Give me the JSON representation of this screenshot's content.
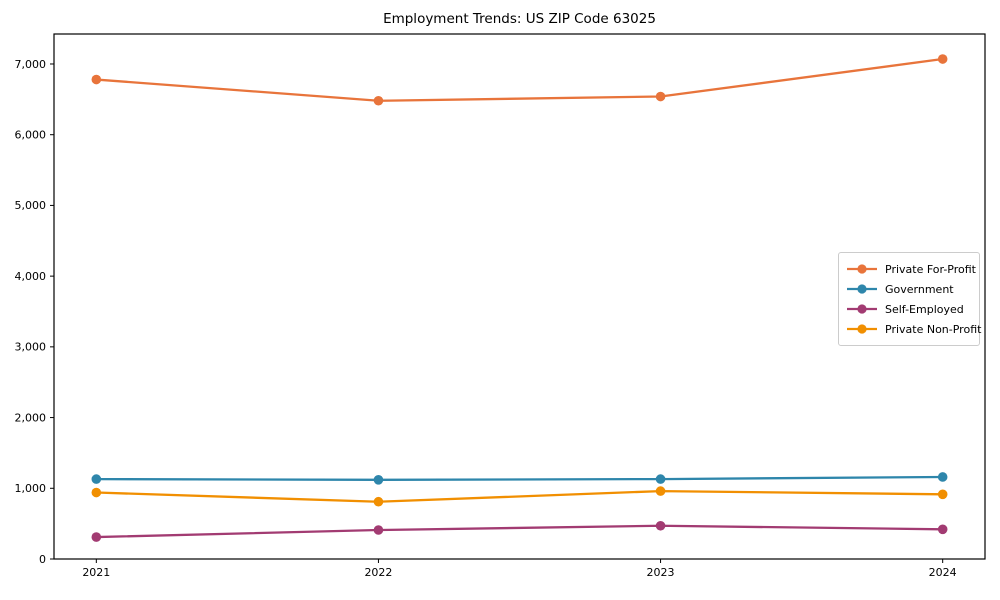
{
  "chart_data": {
    "type": "line",
    "title": "Employment Trends: US ZIP Code 63025",
    "x": [
      2021,
      2022,
      2023,
      2024
    ],
    "x_tick_labels": [
      "2021",
      "2022",
      "2023",
      "2024"
    ],
    "series": [
      {
        "name": "Private For-Profit",
        "color": "#E8743B",
        "values": [
          6780,
          6480,
          6540,
          7070
        ]
      },
      {
        "name": "Government",
        "color": "#2E86AB",
        "values": [
          1130,
          1120,
          1130,
          1160
        ]
      },
      {
        "name": "Self-Employed",
        "color": "#A23B72",
        "values": [
          310,
          410,
          470,
          420
        ]
      },
      {
        "name": "Private Non-Profit",
        "color": "#F18F01",
        "values": [
          940,
          810,
          960,
          915
        ]
      }
    ],
    "xlabel": "",
    "ylabel": "",
    "ylim": [
      0,
      7424
    ],
    "yticks": [
      0,
      1000,
      2000,
      3000,
      4000,
      5000,
      6000,
      7000
    ],
    "ytick_labels": [
      "0",
      "1,000",
      "2,000",
      "3,000",
      "4,000",
      "5,000",
      "6,000",
      "7,000"
    ],
    "grid": false,
    "legend_position": "center right",
    "axes_color": "#000000",
    "background_color": "#ffffff"
  }
}
